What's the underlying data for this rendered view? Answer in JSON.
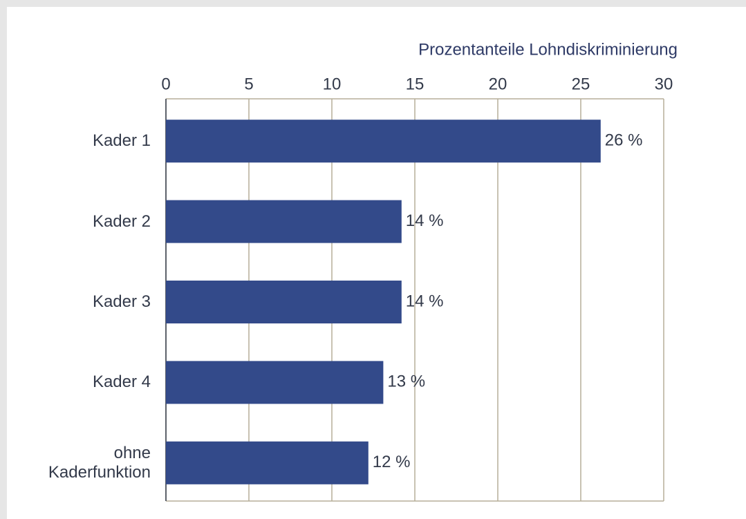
{
  "chart_data": {
    "type": "hbar",
    "x_label": "Prozentanteile Lohndiskriminierung",
    "categories": [
      "Kader 1",
      "Kader 2",
      "Kader 3",
      "Kader 4",
      "ohne Kaderfunktion"
    ],
    "values": [
      26.2,
      14.2,
      14.2,
      13.1,
      12.2
    ],
    "value_labels": [
      "26 %",
      "14 %",
      "14 %",
      "13 %",
      "12 %"
    ],
    "color": "#334a8a",
    "xlim": [
      0,
      30
    ],
    "xticks": [
      0,
      5,
      10,
      15,
      20,
      25,
      30
    ],
    "grid": true
  }
}
